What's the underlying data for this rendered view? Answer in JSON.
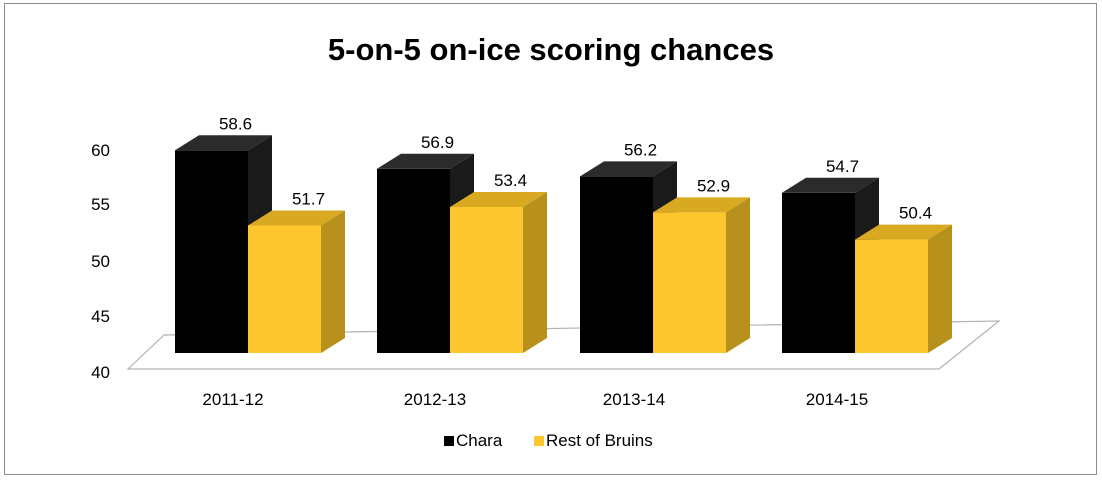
{
  "chart_data": {
    "type": "bar",
    "title": "5-on-5 on-ice scoring chances",
    "xlabel": "",
    "ylabel": "",
    "categories": [
      "2011-12",
      "2012-13",
      "2013-14",
      "2014-15"
    ],
    "series": [
      {
        "name": "Chara",
        "values": [
          58.6,
          56.9,
          56.2,
          54.7
        ],
        "labels": [
          "58.6",
          "56.9",
          "56.2",
          "54.7"
        ],
        "color": "#000000",
        "side_color": "#1a1a1a",
        "top_color": "#2b2b2b"
      },
      {
        "name": "Rest of Bruins",
        "values": [
          51.7,
          53.4,
          52.9,
          50.4
        ],
        "labels": [
          "51.7",
          "53.4",
          "52.9",
          "50.4"
        ],
        "color": "#fdc62e",
        "side_color": "#b8901c",
        "top_color": "#d9a921"
      }
    ],
    "ylim": [
      40,
      60
    ],
    "yticks": [
      40,
      45,
      50,
      55,
      60
    ],
    "ytick_labels": [
      "40",
      "45",
      "50",
      "55",
      "60"
    ],
    "grid": false,
    "legend_position": "bottom",
    "style": "3d-clustered-column"
  }
}
